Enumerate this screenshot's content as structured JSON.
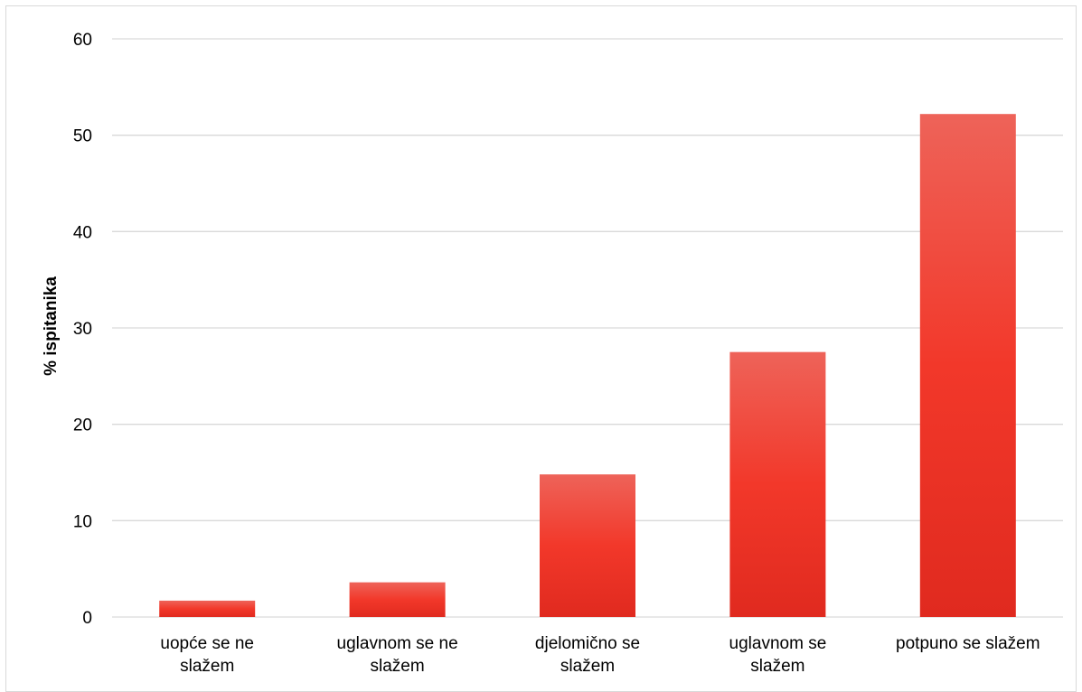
{
  "chart_data": {
    "type": "bar",
    "title": "",
    "xlabel": "",
    "ylabel": "% ispitanika",
    "categories": [
      [
        "uopće se ne",
        "slažem"
      ],
      [
        "uglavnom se ne",
        "slažem"
      ],
      [
        "djelomično se",
        "slažem"
      ],
      [
        "uglavnom se",
        "slažem"
      ],
      [
        "potpuno se slažem"
      ]
    ],
    "values": [
      1.7,
      3.6,
      14.8,
      27.5,
      52.2
    ],
    "ylim": [
      0,
      60
    ],
    "yticks": [
      "0",
      "10",
      "20",
      "30",
      "40",
      "50",
      "60"
    ],
    "grid": true,
    "legend": "none",
    "colors": {
      "bar_top": "#ee6359",
      "bar_mid": "#f2382a",
      "bar_bottom": "#e02a1f",
      "grid": "#d9d9d9",
      "axis": "#bfbfbf"
    }
  }
}
